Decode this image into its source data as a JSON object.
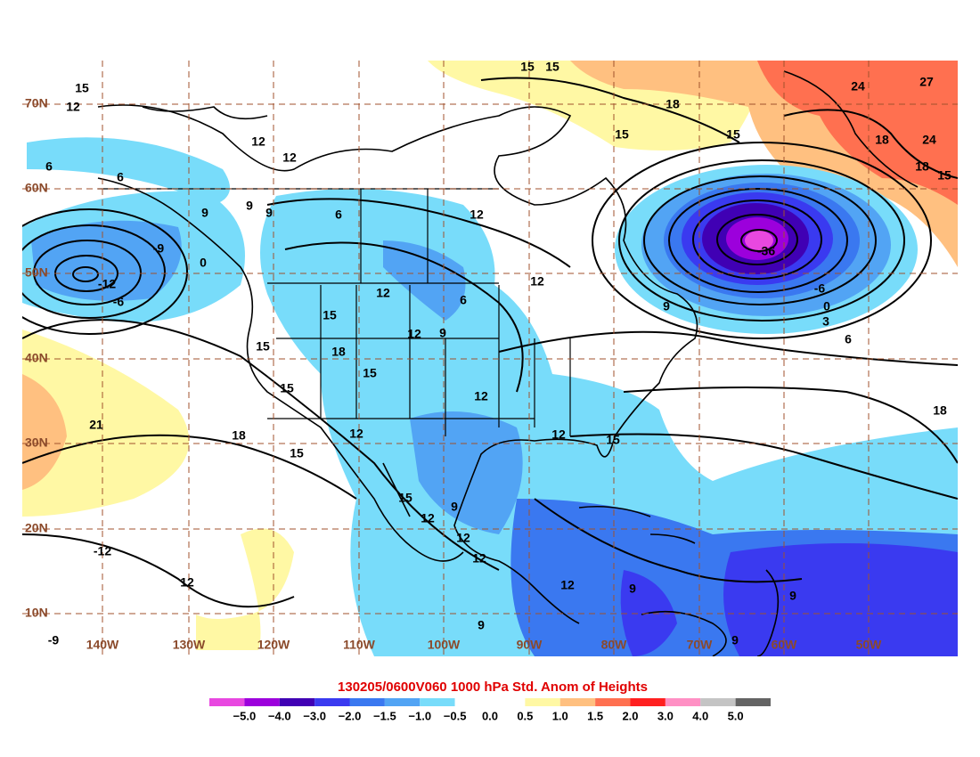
{
  "map": {
    "title": "130205/0600V060 1000 hPa Std. Anom of Heights",
    "latitude_labels": [
      "70N",
      "60N",
      "50N",
      "40N",
      "30N",
      "20N",
      "10N"
    ],
    "longitude_labels": [
      "140W",
      "130W",
      "120W",
      "110W",
      "100W",
      "90W",
      "80W",
      "70W",
      "60W",
      "50W"
    ],
    "contour_labels": [
      "15",
      "12",
      "12",
      "12",
      "6",
      "6",
      "9",
      "9",
      "9",
      "6",
      "12",
      "-9",
      "0",
      "-12",
      "-6",
      "12",
      "6",
      "12",
      "9",
      "15",
      "12",
      "9",
      "15",
      "15",
      "18",
      "15",
      "12",
      "21",
      "18",
      "15",
      "12",
      "12",
      "15",
      "18",
      "15",
      "12",
      "9",
      "12",
      "12",
      "-12",
      "12",
      "12",
      "9",
      "9",
      "9",
      "9",
      "-9",
      "6",
      "3",
      "0",
      "-6",
      "15",
      "15",
      "18",
      "15",
      "15",
      "24",
      "27",
      "18",
      "24",
      "18",
      "15",
      "-36"
    ]
  },
  "colorbar": {
    "colors": [
      "#e848e0",
      "#9c00dc",
      "#4000b4",
      "#3a3af0",
      "#3a78f0",
      "#52a4f4",
      "#78dcfa",
      "#ffffff",
      "#ffffff",
      "#fff8a4",
      "#ffc080",
      "#ff7050",
      "#ff2020",
      "#ff90c4",
      "#c4c4c4",
      "#646464"
    ],
    "ticks": [
      {
        "value": -5.0,
        "label": "−5.0"
      },
      {
        "value": -4.0,
        "label": "−4.0"
      },
      {
        "value": -3.0,
        "label": "−3.0"
      },
      {
        "value": -2.0,
        "label": "−2.0"
      },
      {
        "value": -1.5,
        "label": "−1.5"
      },
      {
        "value": -1.0,
        "label": "−1.0"
      },
      {
        "value": -0.5,
        "label": "−0.5"
      },
      {
        "value": 0.0,
        "label": "0.0"
      },
      {
        "value": 0.5,
        "label": "0.5"
      },
      {
        "value": 1.0,
        "label": "1.0"
      },
      {
        "value": 1.5,
        "label": "1.5"
      },
      {
        "value": 2.0,
        "label": "2.0"
      },
      {
        "value": 3.0,
        "label": "3.0"
      },
      {
        "value": 4.0,
        "label": "4.0"
      },
      {
        "value": 5.0,
        "label": "5.0"
      }
    ]
  }
}
